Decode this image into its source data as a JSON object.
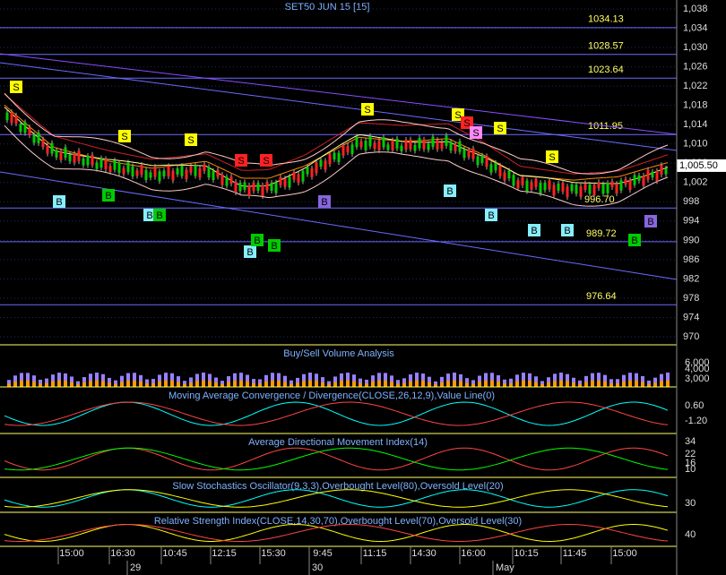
{
  "chart_data": {
    "type": "candlestick",
    "title": "SET50 JUN 15  [15]",
    "ylim": [
      970,
      1038
    ],
    "yticks": [
      {
        "value": 1038,
        "label": "1,038"
      },
      {
        "value": 1034,
        "label": "1,034"
      },
      {
        "value": 1030,
        "label": "1,030"
      },
      {
        "value": 1026,
        "label": "1,026"
      },
      {
        "value": 1022,
        "label": "1,022"
      },
      {
        "value": 1018,
        "label": "1,018"
      },
      {
        "value": 1014,
        "label": "1,014"
      },
      {
        "value": 1010,
        "label": "1,010"
      },
      {
        "value": 1006,
        "label": "1,006"
      },
      {
        "value": 1002,
        "label": "1,002"
      },
      998,
      994,
      990,
      986,
      982,
      978,
      974,
      970
    ],
    "last_price": {
      "value": 1005.5,
      "label": "1,005.50"
    },
    "levels": [
      1034.13,
      1028.57,
      1023.64,
      1011.95,
      996.7,
      989.72,
      976.64
    ],
    "level_labels": [
      "1034.13",
      "1028.57",
      "1023.64",
      "1011.95",
      "996.70",
      "989.72",
      "976.64"
    ],
    "signals": [
      "S",
      "B",
      "B",
      "S",
      "B",
      "B",
      "S",
      "S",
      "S",
      "B",
      "B",
      "B",
      "B",
      "S",
      "B",
      "S",
      "S",
      "S",
      "S",
      "B",
      "B",
      "B",
      "S",
      "B",
      "B"
    ],
    "panels": [
      {
        "title": "Buy/Sell Volume Analysis",
        "ticks": [
          "6,000",
          "4,000",
          "3,000"
        ]
      },
      {
        "title": "Moving Average Convergence / Divergence(CLOSE,26,12,9),Value Line(0)",
        "ticks": [
          "0.60",
          "-1.20"
        ]
      },
      {
        "title": "Average Directional Movement Index(14)",
        "ticks": [
          "34",
          "22",
          "16",
          "10"
        ]
      },
      {
        "title": "Slow Stochastics Oscillator(9,3,3),Overbought Level(80),Oversold Level(20)",
        "ticks": [
          "30"
        ]
      },
      {
        "title": "Relative Strength Index(CLOSE,14,30,70),Overbought Level(70),Oversold Level(30)",
        "ticks": [
          "40"
        ]
      }
    ],
    "time_labels": [
      "15:00",
      "16:30",
      "10:45",
      "12:15",
      "15:30",
      "9:45",
      "11:15",
      "14:30",
      "16:00",
      "10:15",
      "11:45",
      "15:00"
    ],
    "date_labels": [
      "29",
      "30",
      "May"
    ]
  }
}
